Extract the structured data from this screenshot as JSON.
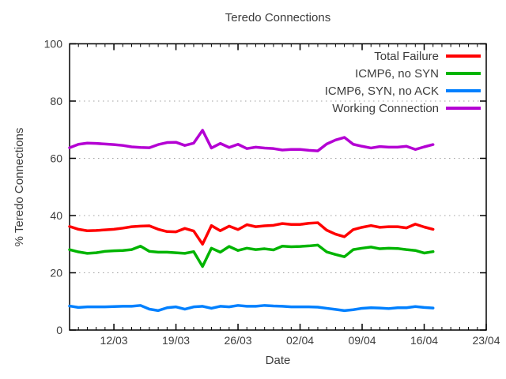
{
  "window": {
    "background": "#ffffff",
    "text_color": "#3c3c3c"
  },
  "chart_data": {
    "type": "line",
    "title": "Teredo Connections",
    "xlabel": "Date",
    "ylabel": "% Teredo Connections",
    "grid": "horizontal-dotted",
    "grid_color": "#a0a0a0",
    "legend_position": "top-right-inside",
    "x_axis": {
      "tick_labels": [
        "12/03",
        "19/03",
        "26/03",
        "02/04",
        "09/04",
        "16/04",
        "23/04"
      ],
      "tick_days": [
        5,
        12,
        19,
        26,
        33,
        40,
        47
      ],
      "minor_tick_interval_days": 1,
      "range_days": [
        0,
        47
      ]
    },
    "y_axis": {
      "ticks": [
        0,
        20,
        40,
        60,
        80,
        100
      ],
      "range": [
        0,
        100
      ]
    },
    "x_start_day": 0,
    "x_step_days": 1,
    "series": [
      {
        "name": "Total Failure",
        "color": "#ff0000",
        "values": [
          36.2,
          35.2,
          34.7,
          34.8,
          35.0,
          35.2,
          35.6,
          36.1,
          36.3,
          36.4,
          35.2,
          34.4,
          34.3,
          35.5,
          34.6,
          30.0,
          36.5,
          34.7,
          36.3,
          35.1,
          36.8,
          36.1,
          36.4,
          36.6,
          37.2,
          36.9,
          36.9,
          37.3,
          37.5,
          34.9,
          33.5,
          32.6,
          35.1,
          35.9,
          36.5,
          35.9,
          36.1,
          36.1,
          35.7,
          37.0,
          36.0,
          35.2
        ]
      },
      {
        "name": "ICMP6, no SYN",
        "color": "#00b400",
        "values": [
          28.1,
          27.3,
          26.8,
          27.0,
          27.5,
          27.7,
          27.8,
          28.1,
          29.3,
          27.5,
          27.2,
          27.2,
          27.0,
          26.8,
          27.4,
          22.2,
          28.6,
          27.2,
          29.2,
          27.8,
          28.6,
          28.1,
          28.4,
          28.0,
          29.3,
          29.1,
          29.2,
          29.4,
          29.7,
          27.3,
          26.4,
          25.6,
          28.1,
          28.6,
          29.0,
          28.4,
          28.6,
          28.5,
          28.1,
          27.8,
          26.9,
          27.4
        ]
      },
      {
        "name": "ICMP6, SYN, no ACK",
        "color": "#0080ff",
        "values": [
          8.4,
          7.9,
          8.1,
          8.1,
          8.1,
          8.2,
          8.3,
          8.3,
          8.6,
          7.3,
          6.8,
          7.8,
          8.1,
          7.3,
          8.1,
          8.3,
          7.6,
          8.3,
          8.1,
          8.6,
          8.3,
          8.3,
          8.6,
          8.4,
          8.3,
          8.1,
          8.1,
          8.1,
          8.0,
          7.6,
          7.2,
          6.8,
          7.1,
          7.6,
          7.8,
          7.7,
          7.5,
          7.8,
          7.8,
          8.2,
          7.9,
          7.7
        ]
      },
      {
        "name": "Working Connection",
        "color": "#b400d3",
        "values": [
          63.7,
          64.9,
          65.3,
          65.2,
          65.0,
          64.8,
          64.5,
          64.0,
          63.8,
          63.7,
          64.8,
          65.5,
          65.6,
          64.5,
          65.3,
          69.8,
          63.6,
          65.2,
          63.8,
          64.9,
          63.4,
          63.9,
          63.6,
          63.4,
          62.9,
          63.1,
          63.1,
          62.8,
          62.6,
          65.0,
          66.4,
          67.3,
          64.9,
          64.2,
          63.6,
          64.1,
          63.9,
          63.9,
          64.2,
          63.1,
          64.0,
          64.8
        ]
      }
    ]
  }
}
